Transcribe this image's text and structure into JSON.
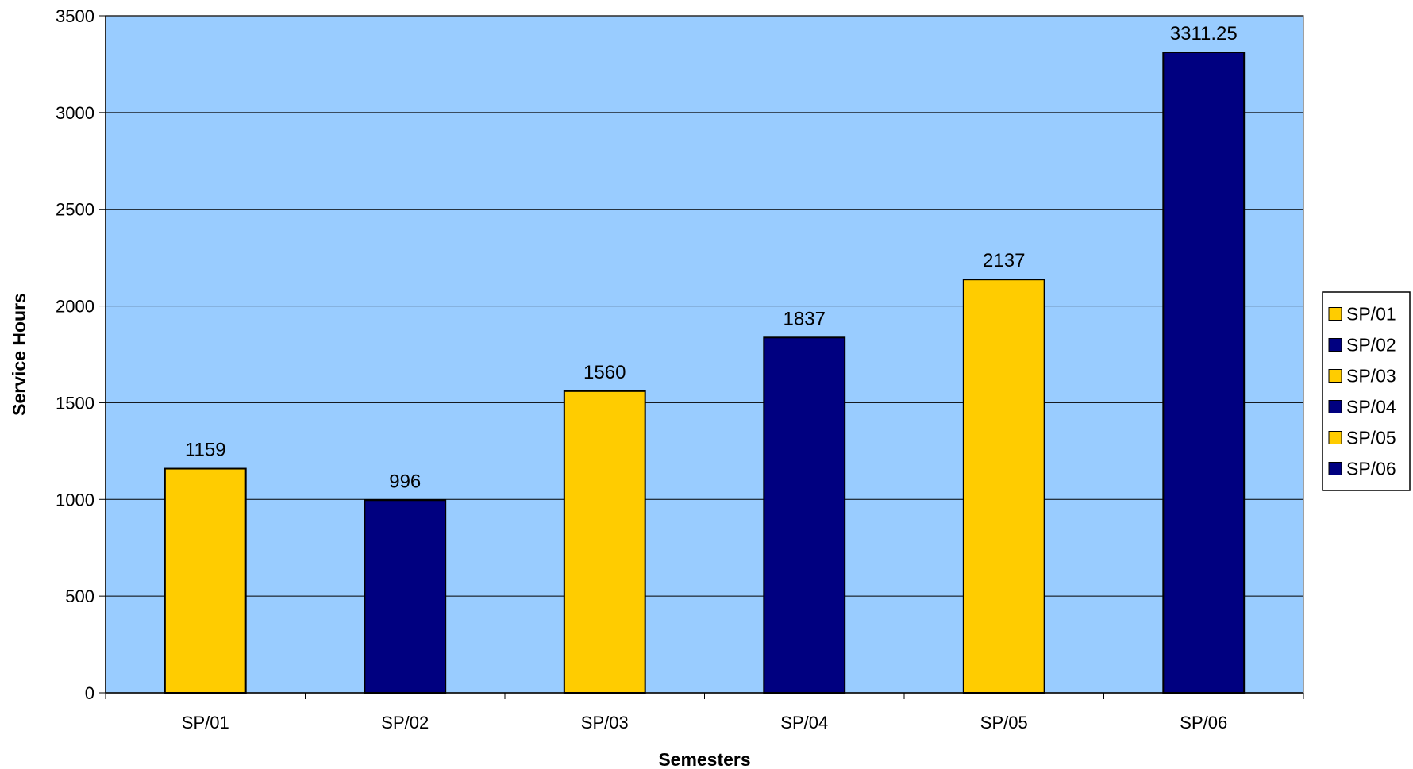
{
  "chart_data": {
    "type": "bar",
    "title": "",
    "xlabel": "Semesters",
    "ylabel": "Service Hours",
    "categories": [
      "SP/01",
      "SP/02",
      "SP/03",
      "SP/04",
      "SP/05",
      "SP/06"
    ],
    "values": [
      1159,
      996,
      1560,
      1837,
      2137,
      3311.25
    ],
    "data_labels": [
      "1159",
      "996",
      "1560",
      "1837",
      "2137",
      "3311.25"
    ],
    "colors": [
      "#FFCC00",
      "#000080",
      "#FFCC00",
      "#000080",
      "#FFCC00",
      "#000080"
    ],
    "ylim": [
      0,
      3500
    ],
    "yticks": [
      0,
      500,
      1000,
      1500,
      2000,
      2500,
      3000,
      3500
    ],
    "grid": true,
    "plot_background": "#99CCFF",
    "legend": {
      "position": "right",
      "entries": [
        {
          "label": "SP/01",
          "color": "#FFCC00"
        },
        {
          "label": "SP/02",
          "color": "#000080"
        },
        {
          "label": "SP/03",
          "color": "#FFCC00"
        },
        {
          "label": "SP/04",
          "color": "#000080"
        },
        {
          "label": "SP/05",
          "color": "#FFCC00"
        },
        {
          "label": "SP/06",
          "color": "#000080"
        }
      ]
    }
  }
}
